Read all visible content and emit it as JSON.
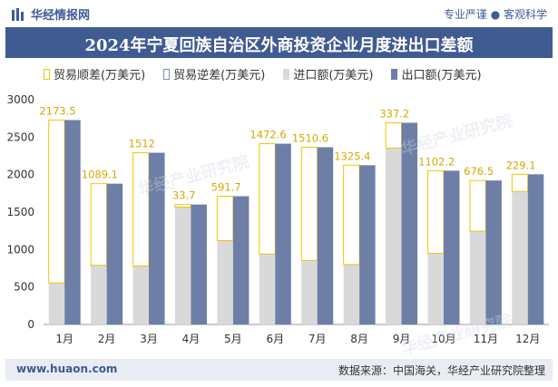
{
  "header": {
    "brand": "华经情报网",
    "slogan": "专业严谨 ● 客观科学"
  },
  "title": "2024年宁夏回族自治区外商投资企业月度进出口差额",
  "legend": {
    "trade_surplus": "贸易顺差(万美元)",
    "trade_deficit": "贸易逆差(万美元)",
    "imports": "进口额(万美元)",
    "exports": "出口额(万美元)"
  },
  "watermark": "华经产业研究院",
  "footer": {
    "website": "www.huaon.com",
    "source": "数据来源：中国海关，华经产业研究院整理"
  },
  "colors": {
    "exports": "#6d7fa6",
    "imports": "#d9d9d9",
    "surplus_border": "#f5c400",
    "deficit_border": "#7d8fb5",
    "title_bg": "#3f5b92"
  },
  "chart_data": {
    "type": "bar",
    "categories": [
      "1月",
      "2月",
      "3月",
      "4月",
      "5月",
      "6月",
      "7月",
      "8月",
      "9月",
      "10月",
      "11月",
      "12月"
    ],
    "ylim": [
      0,
      3000
    ],
    "yticks": [
      0,
      500,
      1000,
      1500,
      2000,
      2500,
      3000
    ],
    "series": [
      {
        "name": "进口额(万美元)",
        "values": [
          555,
          790,
          780,
          1567,
          1120,
          940,
          855,
          800,
          2355,
          950,
          1245,
          1775
        ]
      },
      {
        "name": "出口额(万美元)",
        "values": [
          2728.5,
          1879.2,
          2292,
          1600.7,
          1711.7,
          2412.6,
          2365.6,
          2125.4,
          2692.2,
          2052.2,
          1921.5,
          2004.1
        ]
      },
      {
        "name": "贸易顺差(万美元)",
        "values": [
          2173.5,
          1089.1,
          1512,
          33.7,
          591.7,
          1472.6,
          1510.6,
          1325.4,
          337.2,
          1102.2,
          676.5,
          229.1
        ]
      }
    ],
    "data_labels": [
      "2173.5",
      "1089.1",
      "1512",
      "33.7",
      "591.7",
      "1472.6",
      "1510.6",
      "1325.4",
      "337.2",
      "1102.2",
      "676.5",
      "229.1"
    ]
  }
}
